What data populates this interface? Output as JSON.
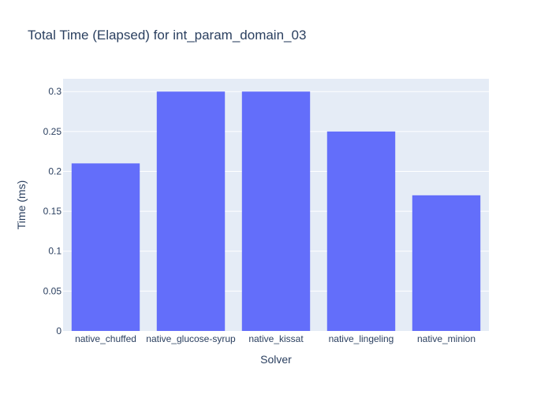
{
  "chart_data": {
    "type": "bar",
    "title": "Total Time (Elapsed) for int_param_domain_03",
    "xlabel": "Solver",
    "ylabel": "Time (ms)",
    "categories": [
      "native_chuffed",
      "native_glucose-syrup",
      "native_kissat",
      "native_lingeling",
      "native_minion"
    ],
    "values": [
      0.21,
      0.3,
      0.3,
      0.25,
      0.17
    ],
    "ylim": [
      0,
      0.316
    ],
    "yticks": [
      0,
      0.05,
      0.1,
      0.15,
      0.2,
      0.25,
      0.3
    ],
    "ytick_labels": [
      "0",
      "0.05",
      "0.1",
      "0.15",
      "0.2",
      "0.25",
      "0.3"
    ],
    "grid": true,
    "colors": {
      "bar": "#636efa",
      "plot_background": "#e5ecf6",
      "gridline": "#ffffff",
      "text": "#2a3f5f"
    }
  }
}
